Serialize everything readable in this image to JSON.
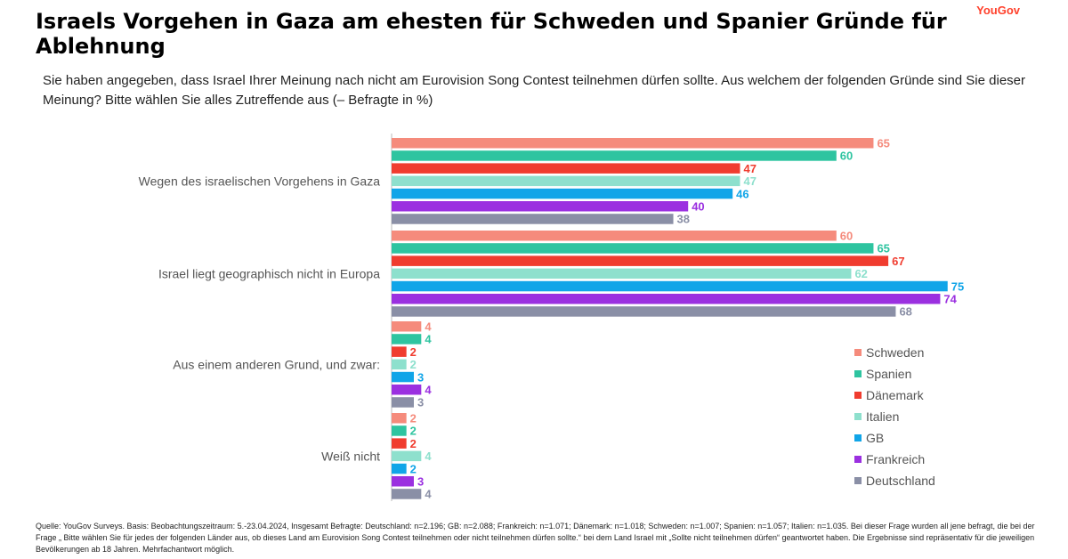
{
  "title": "Israels Vorgehen in Gaza am ehesten für Schweden und Spanier Gründe für Ablehnung",
  "brand": "YouGov",
  "subtitle": "Sie haben angegeben, dass Israel Ihrer Meinung nach nicht am Eurovision Song Contest teilnehmen dürfen sollte. Aus welchem der folgenden Gründe sind Sie dieser Meinung? Bitte wählen Sie alles Zutreffende aus (– Befragte in %)",
  "footer": "Quelle: YouGov Surveys. Basis: Beobachtungszeitraum: 5.-23.04.2024, Insgesamt Befragte: Deutschland: n=2.196; GB: n=2.088; Frankreich: n=1.071; Dänemark: n=1.018; Schweden: n=1.007; Spanien: n=1.057; Italien: n=1.035. Bei dieser Frage wurden all jene befragt, die bei der Frage „ Bitte wählen Sie für jedes der folgenden Länder aus, ob dieses Land am Eurovision Song Contest teilnehmen oder nicht teilnehmen dürfen sollte.“ bei dem Land Israel mit „Sollte nicht teilnehmen dürfen“ geantwortet haben. Die Ergebnisse sind repräsentativ für die jeweiligen Bevölkerungen ab 18 Jahren. Mehrfachantwort möglich.",
  "chart_data": {
    "type": "bar",
    "orientation": "horizontal",
    "categories": [
      "Wegen des israelischen Vorgehens in Gaza",
      "Israel liegt geographisch nicht in Europa",
      "Aus einem anderen Grund, und zwar:",
      "Weiß nicht"
    ],
    "series": [
      {
        "name": "Schweden",
        "color": "#f58b7c",
        "values": [
          65,
          60,
          4,
          2
        ]
      },
      {
        "name": "Spanien",
        "color": "#2ec4a0",
        "values": [
          60,
          65,
          4,
          2
        ]
      },
      {
        "name": "Dänemark",
        "color": "#f03c2f",
        "values": [
          47,
          67,
          2,
          2
        ]
      },
      {
        "name": "Italien",
        "color": "#8ee0cd",
        "values": [
          47,
          62,
          2,
          4
        ]
      },
      {
        "name": "GB",
        "color": "#11a5e8",
        "values": [
          46,
          75,
          3,
          2
        ]
      },
      {
        "name": "Frankreich",
        "color": "#9b30e0",
        "values": [
          40,
          74,
          4,
          3
        ]
      },
      {
        "name": "Deutschland",
        "color": "#8a8fa6",
        "values": [
          38,
          68,
          3,
          4
        ]
      }
    ],
    "xlim": [
      0,
      75
    ],
    "grid": false,
    "legend_position": "bottom-right",
    "unit": "%"
  }
}
